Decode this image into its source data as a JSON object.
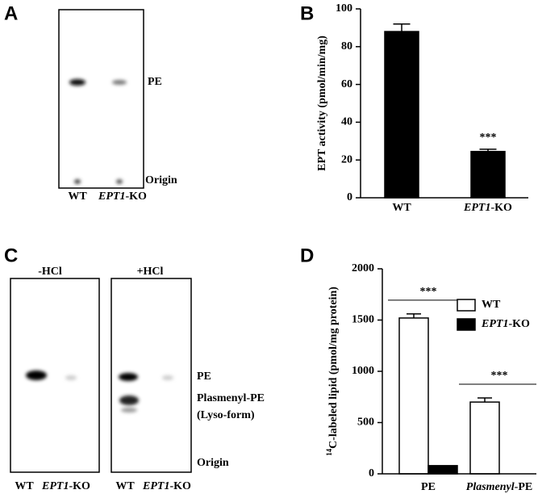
{
  "blots": {
    "A": {
      "panel": "A",
      "lanes": [
        "WT",
        "EPT1-KO"
      ],
      "labels": [
        "PE",
        "Origin"
      ]
    },
    "C": {
      "panel": "C",
      "gels": [
        {
          "title": "-HCl",
          "lanes": [
            "WT",
            "EPT1-KO"
          ]
        },
        {
          "title": "+HCl",
          "lanes": [
            "WT",
            "EPT1-KO"
          ]
        }
      ],
      "labels": [
        "PE",
        "Plasmenyl-PE",
        "(Lyso-form)",
        "Origin"
      ]
    }
  },
  "chart_data": [
    {
      "type": "bar",
      "panel": "B",
      "ylabel": "EPT activity (pmol/min/mg)",
      "categories": [
        "WT",
        "EPT1-KO"
      ],
      "series": [
        {
          "color": "#000000",
          "values": [
            88,
            24.5
          ],
          "errors": [
            4,
            1.2
          ]
        }
      ],
      "ylim": [
        0,
        100
      ],
      "yticks": [
        0,
        20,
        40,
        60,
        80,
        100
      ],
      "annotations": [
        {
          "text": "***",
          "category": 1
        }
      ]
    },
    {
      "type": "bar",
      "panel": "D",
      "ylabel": "14C-labeled lipid (pmol/mg protein)",
      "categories": [
        "PE",
        "Plasmenyl-PE"
      ],
      "series": [
        {
          "name": "WT",
          "color": "#ffffff",
          "values": [
            1520,
            700
          ],
          "errors": [
            40,
            40
          ]
        },
        {
          "name": "EPT1-KO",
          "color": "#000000",
          "values": [
            80,
            0
          ]
        }
      ],
      "ylim": [
        0,
        2000
      ],
      "yticks": [
        0,
        500,
        1000,
        1500,
        2000
      ],
      "annotations": [
        {
          "text": "***",
          "category": 0
        },
        {
          "text": "***",
          "category": 1
        }
      ]
    }
  ]
}
